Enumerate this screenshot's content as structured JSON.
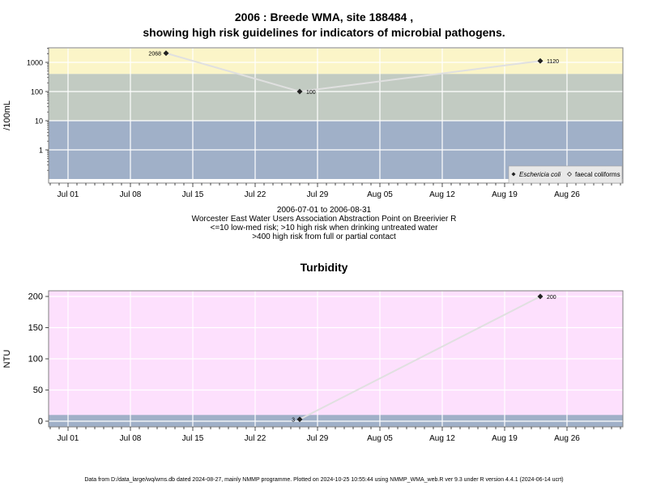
{
  "title_line1": "2006 : Breede WMA, site 188484 ,",
  "title_line2": "showing high risk guidelines for indicators of microbial pathogens.",
  "caption": [
    "2006-07-01 to 2006-08-31",
    "Worcester East Water Users Association Abstraction Point on Breerivier R",
    "<=10 low-med risk; >10 high risk when drinking untreated water",
    ">400 high risk from full or partial contact"
  ],
  "turbidity_title": "Turbidity",
  "footer": "Data from D:/data_large/wq/wms.db dated 2024-08-27, mainly NMMP programme. Plotted on 2024-10-25 10:55:44 using NMMP_WMA_web.R ver 9.3 under R version 4.4.1 (2024-06-14 ucrt)",
  "colors": {
    "high_contact_band": "#fbf5c8",
    "drinking_risk_band": "#c2cbc2",
    "low_risk_band": "#a0b0c8",
    "turbidity_bg": "#fde0fd",
    "turbidity_low_band": "#a0b0c8",
    "line": "#e0e0e0",
    "point": "#222222"
  },
  "chart_data": [
    {
      "type": "line",
      "ylabel": "/100mL",
      "y_scale": "log",
      "x_ticks": [
        "Jul 01",
        "Jul 08",
        "Jul 15",
        "Jul 22",
        "Jul 29",
        "Aug 05",
        "Aug 12",
        "Aug 19",
        "Aug 26"
      ],
      "y_ticks": [
        "1",
        "10",
        "100",
        "1000"
      ],
      "legend": [
        "Eschericia coli",
        "faecal coliforms"
      ],
      "legend_position": "bottom-right",
      "bands": [
        {
          "from": 400,
          "to": 3000,
          "color": "#fbf5c8"
        },
        {
          "from": 10,
          "to": 400,
          "color": "#c2cbc2"
        },
        {
          "from": 0.1,
          "to": 10,
          "color": "#a0b0c8"
        }
      ],
      "series": [
        {
          "name": "Eschericia coli",
          "points": [
            {
              "x": "2006-07-12",
              "y": 2068,
              "label": "2068"
            },
            {
              "x": "2006-07-27",
              "y": 100,
              "label": "100"
            },
            {
              "x": "2006-08-23",
              "y": 1120,
              "label": "1120"
            }
          ]
        }
      ]
    },
    {
      "type": "line",
      "title": "Turbidity",
      "ylabel": "NTU",
      "x_ticks": [
        "Jul 01",
        "Jul 08",
        "Jul 15",
        "Jul 22",
        "Jul 29",
        "Aug 05",
        "Aug 12",
        "Aug 19",
        "Aug 26"
      ],
      "y_ticks": [
        "0",
        "50",
        "100",
        "150",
        "200"
      ],
      "bands": [
        {
          "from": -10,
          "to": 10,
          "color": "#a0b0c8"
        }
      ],
      "series": [
        {
          "points": [
            {
              "x": "2006-07-27",
              "y": 3,
              "label": "3"
            },
            {
              "x": "2006-08-23",
              "y": 200,
              "label": "200"
            }
          ]
        }
      ]
    }
  ]
}
